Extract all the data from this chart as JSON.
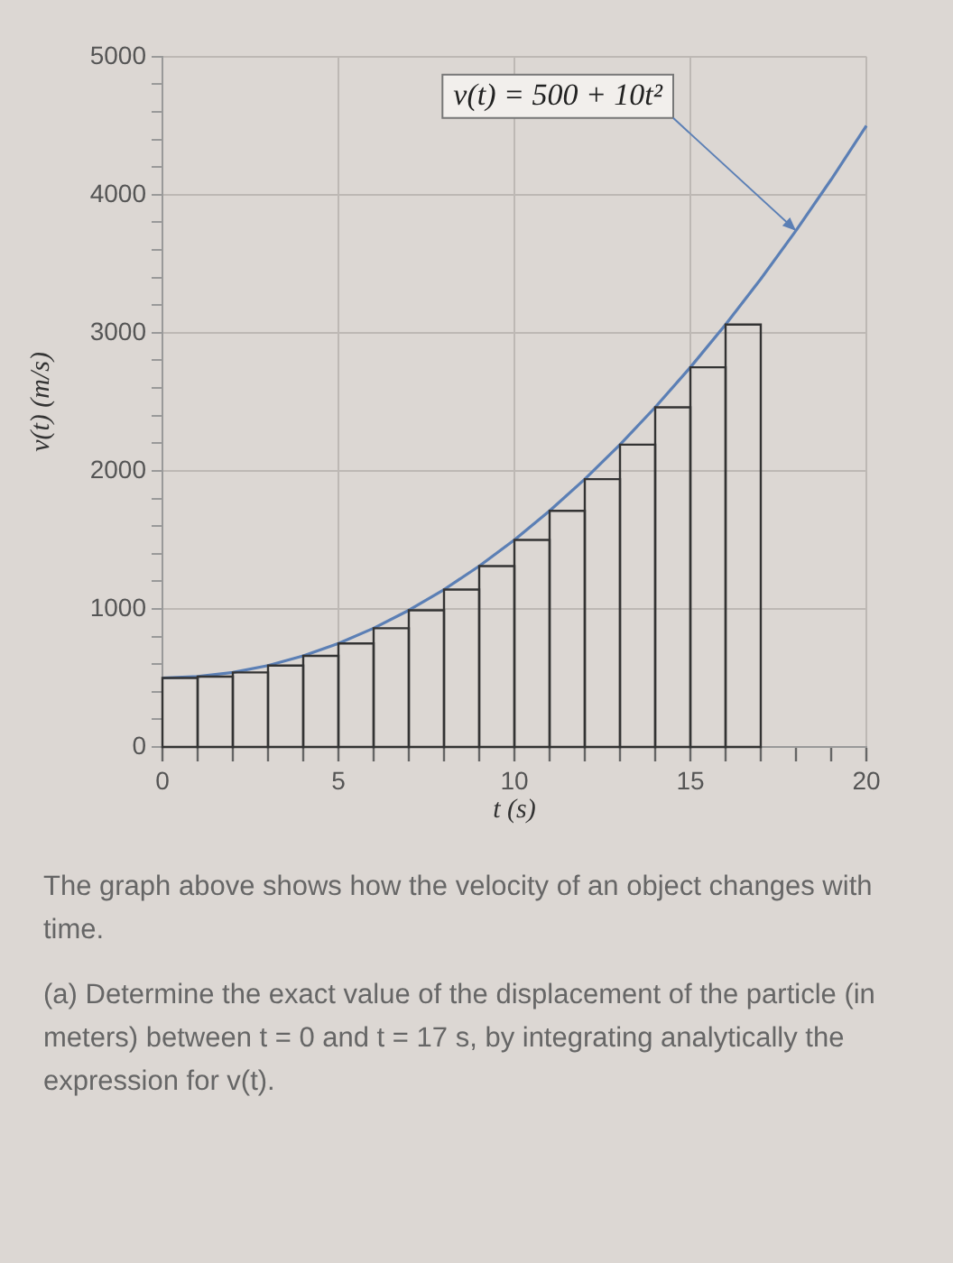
{
  "chart_data": {
    "type": "histogram",
    "xlabel": "t (s)",
    "ylabel": "v(t) (m/s)",
    "bins": [
      0,
      1,
      2,
      3,
      4,
      5,
      6,
      7,
      8,
      9,
      10,
      11,
      12,
      13,
      14,
      15,
      16,
      17
    ],
    "values": [
      500,
      510,
      540,
      590,
      660,
      750,
      860,
      990,
      1140,
      1310,
      1500,
      1710,
      1940,
      2190,
      2460,
      2750,
      3060
    ],
    "color": "#333333",
    "series": [
      {
        "type": "line",
        "color": "#5b7fb5",
        "x": [
          0,
          1,
          2,
          3,
          4,
          5,
          6,
          7,
          8,
          9,
          10,
          11,
          12,
          13,
          14,
          15,
          16,
          17,
          18,
          19,
          20
        ],
        "values": [
          500,
          510,
          540,
          590,
          660,
          750,
          860,
          990,
          1140,
          1310,
          1500,
          1710,
          1940,
          2190,
          2460,
          2750,
          3060,
          3390,
          3740,
          4110,
          4500
        ]
      }
    ],
    "marker": "none",
    "xlim": [
      0,
      20
    ],
    "xticks": [
      0,
      {
        "value": 1,
        "label": null
      },
      {
        "value": 2,
        "label": null
      },
      {
        "value": 3,
        "label": null
      },
      {
        "value": 4,
        "label": null
      },
      5,
      {
        "value": 6,
        "label": null
      },
      {
        "value": 7,
        "label": null
      },
      {
        "value": 8,
        "label": null
      },
      {
        "value": 9,
        "label": null
      },
      10,
      {
        "value": 11,
        "label": null
      },
      {
        "value": 12,
        "label": null
      },
      {
        "value": 13,
        "label": null
      },
      {
        "value": 14,
        "label": null
      },
      15,
      {
        "value": 16,
        "label": null
      },
      {
        "value": 17,
        "label": null
      },
      {
        "value": 18,
        "label": null
      },
      {
        "value": 19,
        "label": null
      },
      20
    ],
    "ylim": [
      0,
      5000
    ],
    "yticks": [
      0,
      {
        "value": 200,
        "label": null
      },
      {
        "value": 400,
        "label": null
      },
      {
        "value": 600,
        "label": null
      },
      {
        "value": 800,
        "label": null
      },
      1000,
      {
        "value": 1200,
        "label": null
      },
      {
        "value": 1400,
        "label": null
      },
      {
        "value": 1600,
        "label": null
      },
      {
        "value": 1800,
        "label": null
      },
      2000,
      {
        "value": 2200,
        "label": null
      },
      {
        "value": 2400,
        "label": null
      },
      {
        "value": 2600,
        "label": null
      },
      {
        "value": 2800,
        "label": null
      },
      3000,
      {
        "value": 3200,
        "label": null
      },
      {
        "value": 3400,
        "label": null
      },
      {
        "value": 3600,
        "label": null
      },
      {
        "value": 3800,
        "label": null
      },
      4000,
      {
        "value": 4200,
        "label": null
      },
      {
        "value": 4400,
        "label": null
      },
      {
        "value": 4600,
        "label": null
      },
      {
        "value": 4800,
        "label": null
      },
      5000
    ],
    "grid": true,
    "legend": false,
    "annotations": [
      {
        "text": "v(t) = 500 + 10t²",
        "x": 18,
        "y": 3740
      },
      "The graph above shows how the velocity of an object changes with time.",
      "(a) Determine the exact value of the displacement of the particle (in meters) between t = 0 and t = 17 s, by integrating analytically the expression for v(t)."
    ]
  }
}
